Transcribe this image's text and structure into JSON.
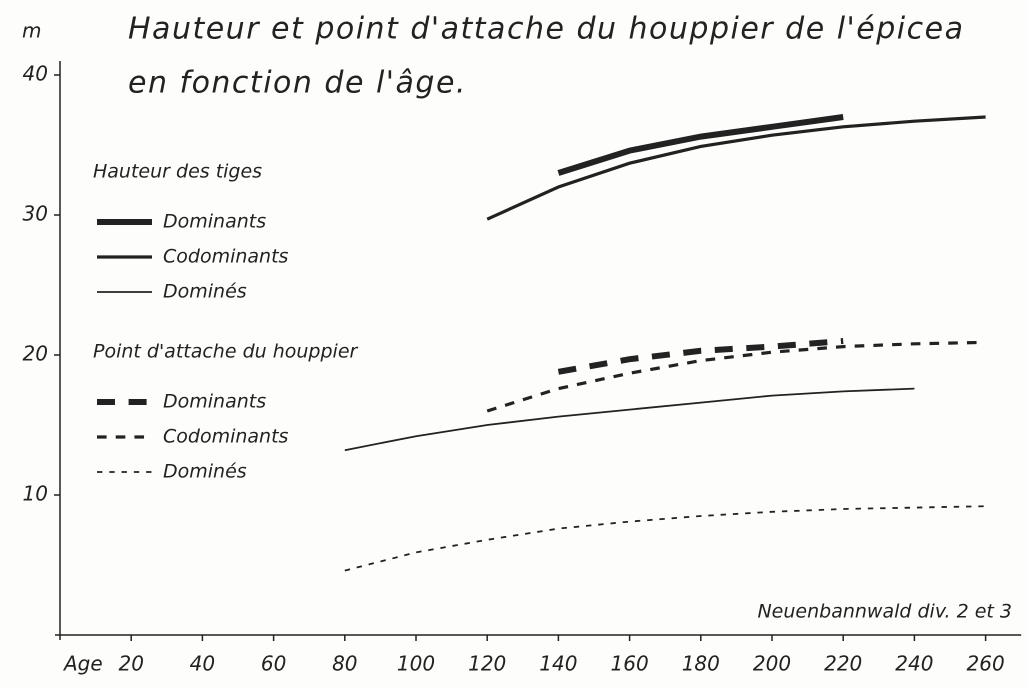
{
  "chart_data": {
    "type": "line",
    "title": [
      "Hauteur et point d'attache du houppier de l'épicea",
      "en fonction de l'âge."
    ],
    "y_unit": "m",
    "x_label": "Age",
    "annotation": "Neuenbannwald div. 2 et 3",
    "xlim": [
      0,
      270
    ],
    "ylim": [
      0,
      41
    ],
    "xticks": [
      20,
      40,
      60,
      80,
      100,
      120,
      140,
      160,
      180,
      200,
      220,
      240,
      260
    ],
    "yticks": [
      10,
      20,
      30,
      40
    ],
    "color": "#222222",
    "groups": [
      {
        "title": "Hauteur des tiges",
        "series": [
          {
            "name": "Dominants",
            "width": 6,
            "dash": false,
            "x": [
              140,
              160,
              180,
              200,
              220
            ],
            "values": [
              33,
              34.6,
              35.6,
              36.3,
              37
            ]
          },
          {
            "name": "Codominants",
            "width": 3.2,
            "dash": false,
            "x": [
              120,
              140,
              160,
              180,
              200,
              220,
              240,
              260
            ],
            "values": [
              29.7,
              32,
              33.7,
              34.9,
              35.7,
              36.3,
              36.7,
              37
            ]
          },
          {
            "name": "Dominés",
            "width": 1.8,
            "dash": false,
            "x": [
              80,
              100,
              120,
              140,
              160,
              180,
              200,
              220,
              240
            ],
            "values": [
              13.2,
              14.2,
              15,
              15.6,
              16.1,
              16.6,
              17.1,
              17.4,
              17.6
            ]
          }
        ]
      },
      {
        "title": "Point d'attache du houppier",
        "series": [
          {
            "name": "Dominants",
            "width": 6,
            "dash": true,
            "x": [
              140,
              160,
              180,
              200,
              220
            ],
            "values": [
              18.8,
              19.7,
              20.3,
              20.6,
              21
            ]
          },
          {
            "name": "Codominants",
            "width": 3.2,
            "dash": true,
            "x": [
              120,
              140,
              160,
              180,
              200,
              220,
              240,
              260
            ],
            "values": [
              16,
              17.6,
              18.7,
              19.6,
              20.2,
              20.6,
              20.8,
              20.9
            ]
          },
          {
            "name": "Dominés",
            "width": 1.8,
            "dash": true,
            "x": [
              80,
              100,
              120,
              140,
              160,
              180,
              200,
              220,
              240,
              260
            ],
            "values": [
              4.6,
              5.9,
              6.8,
              7.6,
              8.1,
              8.5,
              8.8,
              9.0,
              9.1,
              9.2
            ]
          }
        ]
      }
    ]
  }
}
